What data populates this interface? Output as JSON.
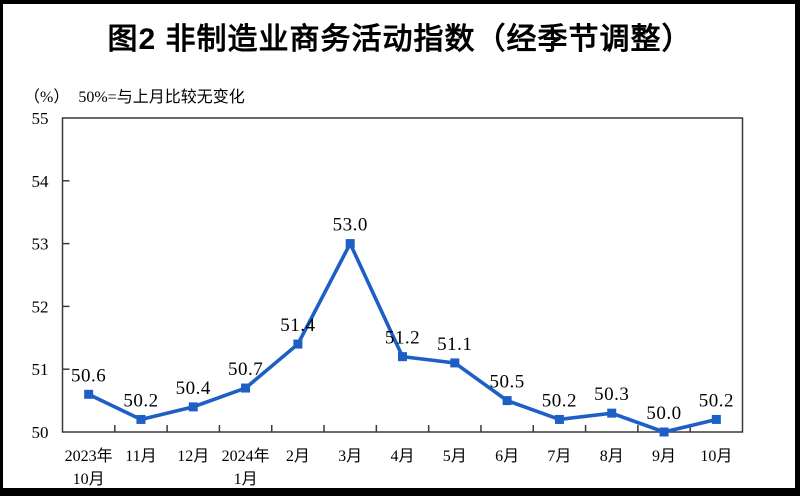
{
  "header": {
    "title": "图2 非制造业商务活动指数（经季节调整）"
  },
  "chart_data": {
    "type": "line",
    "title": "图2 非制造业商务活动指数（经季节调整）",
    "unit_label": "（%）",
    "note": "50%=与上月比较无变化",
    "categories": [
      "2023年\n10月",
      "11月",
      "12月",
      "2024年\n1月",
      "2月",
      "3月",
      "4月",
      "5月",
      "6月",
      "7月",
      "8月",
      "9月",
      "10月"
    ],
    "values": [
      50.6,
      50.2,
      50.4,
      50.7,
      51.4,
      53.0,
      51.2,
      51.1,
      50.5,
      50.2,
      50.3,
      50.0,
      50.2
    ],
    "data_labels": [
      "50.6",
      "50.2",
      "50.4",
      "50.7",
      "51.4",
      "53.0",
      "51.2",
      "51.1",
      "50.5",
      "50.2",
      "50.3",
      "50.0",
      "50.2"
    ],
    "xlabel": "",
    "ylabel": "",
    "ylim": [
      50,
      55
    ],
    "yticks": [
      50,
      51,
      52,
      53,
      54,
      55
    ],
    "grid": false,
    "legend": "none",
    "series_color": "#1e5fc5",
    "axis_color": "#3a3a3a",
    "text_color": "#000000"
  }
}
